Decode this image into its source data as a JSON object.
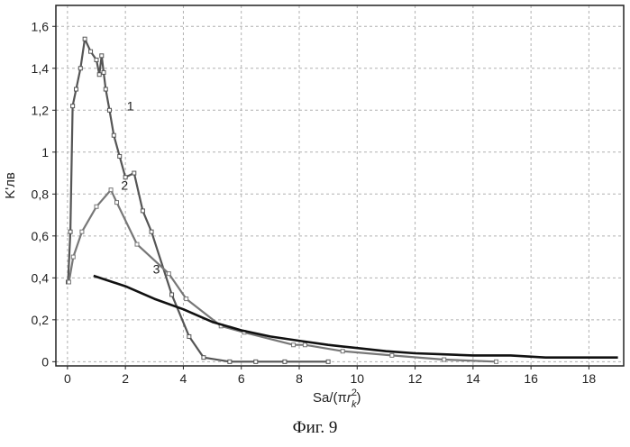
{
  "caption": "Фиг. 9",
  "chart_data": {
    "type": "line",
    "title": "",
    "ylabel": "K'лв",
    "xlabel": "Sa/(πr²k)",
    "xlabel_parts": {
      "main": "Sa/(π",
      "var": "r",
      "sup": "2",
      "sub": "k",
      "close": ")"
    },
    "xlim": [
      -0.4,
      19.2
    ],
    "ylim": [
      -0.02,
      1.7
    ],
    "x_ticks": [
      0,
      2,
      4,
      6,
      8,
      10,
      12,
      14,
      16,
      18
    ],
    "x_tick_labels": [
      "0",
      "2",
      "4",
      "6",
      "8",
      "10",
      "12",
      "14",
      "16",
      "18"
    ],
    "y_ticks": [
      0,
      0.2,
      0.4,
      0.6,
      0.8,
      1.0,
      1.2,
      1.4,
      1.6
    ],
    "y_tick_labels": [
      "0",
      "0,2",
      "0,4",
      "0,6",
      "0,8",
      "1",
      "1,2",
      "1,4",
      "1,6"
    ],
    "grid": true,
    "grid_style": "dashed",
    "series": [
      {
        "name": "1",
        "color": "#555555",
        "markers": true,
        "x": [
          0.02,
          0.1,
          0.18,
          0.3,
          0.45,
          0.6,
          0.8,
          1.0,
          1.1,
          1.18,
          1.25,
          1.32,
          1.45,
          1.6,
          1.8,
          2.0,
          2.3,
          2.6,
          2.9,
          3.6,
          4.2,
          4.7,
          5.6,
          6.5,
          7.5,
          9.0
        ],
        "y": [
          0.38,
          0.62,
          1.22,
          1.3,
          1.4,
          1.54,
          1.48,
          1.44,
          1.37,
          1.46,
          1.38,
          1.3,
          1.2,
          1.08,
          0.98,
          0.88,
          0.9,
          0.72,
          0.62,
          0.32,
          0.12,
          0.02,
          0.0,
          0.0,
          0.0,
          0.0
        ]
      },
      {
        "name": "2",
        "color": "#777777",
        "markers": true,
        "x": [
          0.05,
          0.2,
          0.5,
          1.0,
          1.5,
          1.7,
          2.4,
          3.5,
          4.1,
          5.3,
          6.1,
          7.8,
          8.2,
          9.5,
          11.2,
          13.0,
          14.8
        ],
        "y": [
          0.38,
          0.5,
          0.62,
          0.74,
          0.82,
          0.76,
          0.56,
          0.42,
          0.3,
          0.17,
          0.14,
          0.08,
          0.08,
          0.05,
          0.03,
          0.01,
          0.0
        ]
      },
      {
        "name": "3",
        "color": "#111111",
        "markers": false,
        "x": [
          0.9,
          2.0,
          3.0,
          4.0,
          5.0,
          6.0,
          7.0,
          8.0,
          9.0,
          10.0,
          11.0,
          12.0,
          13.0,
          14.0,
          15.3,
          16.5,
          19.0
        ],
        "y": [
          0.41,
          0.36,
          0.3,
          0.25,
          0.19,
          0.15,
          0.12,
          0.1,
          0.08,
          0.065,
          0.05,
          0.04,
          0.035,
          0.03,
          0.03,
          0.02,
          0.02
        ]
      }
    ],
    "series_label_positions": [
      {
        "name": "1",
        "x": 2.05,
        "y": 1.2
      },
      {
        "name": "2",
        "x": 1.85,
        "y": 0.82
      },
      {
        "name": "3",
        "x": 2.95,
        "y": 0.42
      }
    ]
  }
}
